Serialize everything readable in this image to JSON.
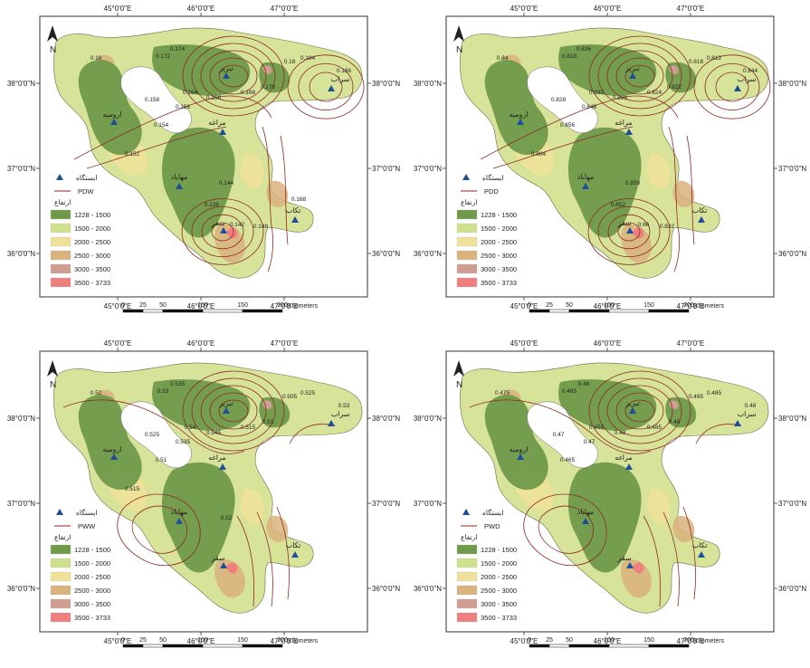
{
  "coords": {
    "top": [
      "45°0'0\"E",
      "46°0'0\"E",
      "47°0'0\"E"
    ],
    "left": [
      "38°0'0\"N",
      "37°0'0\"N",
      "36°0'0\"N"
    ],
    "right": [
      "38°0'0\"N",
      "37°0'0\"N",
      "36°0'0\"N"
    ]
  },
  "scale": {
    "ticks": [
      "0",
      "25",
      "50",
      "100",
      "150",
      "200"
    ],
    "unit": "Kilometers"
  },
  "legend": {
    "station_label": "ایستگاه",
    "elevation_title": "ارتفاع",
    "classes": [
      {
        "label": "1228 - 1500",
        "color": "#6f9a4a"
      },
      {
        "label": "1500 - 2000",
        "color": "#cfe08a"
      },
      {
        "label": "2000 - 2500",
        "color": "#f0e19a"
      },
      {
        "label": "2500 - 3000",
        "color": "#d9b27c"
      },
      {
        "label": "3000 - 3500",
        "color": "#cf9e90"
      },
      {
        "label": "3500 - 3733",
        "color": "#ef7f7f"
      }
    ]
  },
  "stations": [
    {
      "name": "تبریز"
    },
    {
      "name": "سراب"
    },
    {
      "name": "ارومیه"
    },
    {
      "name": "مراغه"
    },
    {
      "name": "مهاباد"
    },
    {
      "name": "سقز"
    },
    {
      "name": "تکاب"
    }
  ],
  "panels": [
    {
      "id": "pdw",
      "line_label": "PDW",
      "contour_labels": [
        "0.16",
        "0.158",
        "0.172",
        "0.174",
        "0.164",
        "0.166",
        "0.168",
        "0.176",
        "0.18",
        "0.184",
        "0.186",
        "0.156",
        "0.154",
        "0.152",
        "0.144",
        "0.136",
        "0.142",
        "0.148",
        "0.168"
      ]
    },
    {
      "id": "pdd",
      "line_label": "PDD",
      "contour_labels": [
        "0.84",
        "0.828",
        "0.818",
        "0.836",
        "0.832",
        "0.826",
        "0.824",
        "0.822",
        "0.816",
        "0.812",
        "0.844",
        "0.848",
        "0.856",
        "0.864",
        "0.858",
        "0.852",
        "0.86",
        "0.832"
      ]
    },
    {
      "id": "pww",
      "line_label": "PWW",
      "contour_labels": [
        "0.52",
        "0.525",
        "0.53",
        "0.535",
        "0.54",
        "0.545",
        "0.515",
        "0.51",
        "0.505",
        "0.525",
        "0.53",
        "0.535",
        "0.51",
        "0.515",
        "0.52"
      ]
    },
    {
      "id": "pwd",
      "line_label": "PWD",
      "contour_labels": [
        "0.475",
        "0.47",
        "0.465",
        "0.46",
        "0.455",
        "0.48",
        "0.485",
        "0.49",
        "0.495",
        "0.485",
        "0.48",
        "0.47",
        "0.465"
      ]
    }
  ]
}
